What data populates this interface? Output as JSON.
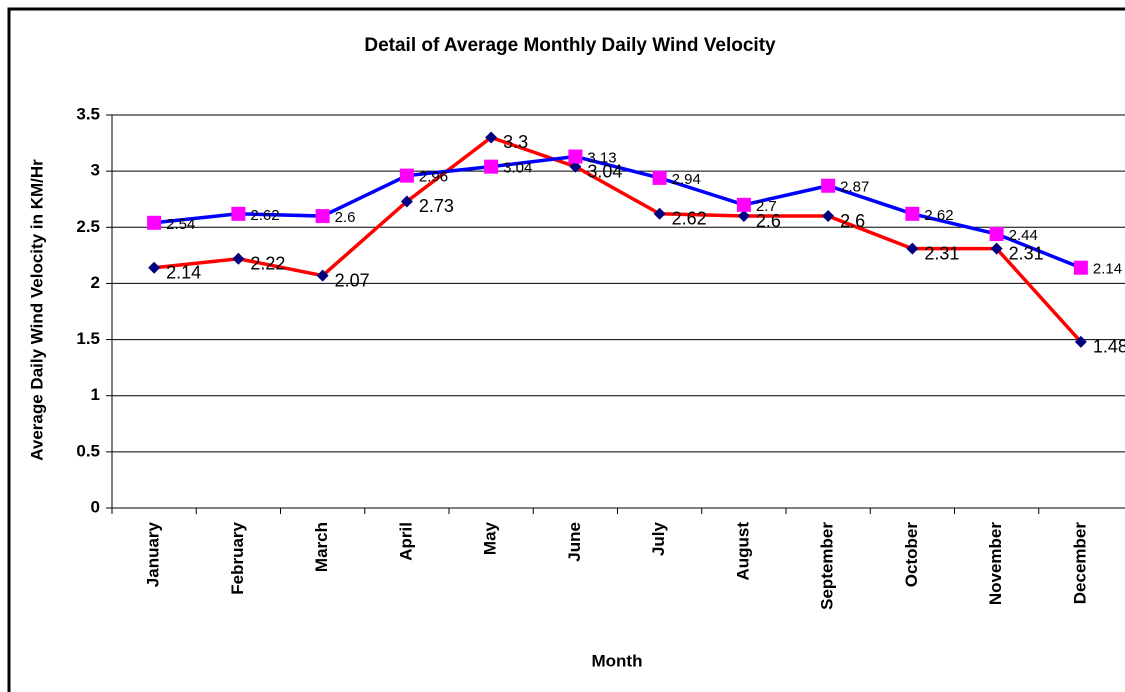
{
  "chart_data": {
    "type": "line",
    "title": "Detail of Average  Monthly Daily Wind Velocity",
    "x_label": "Month",
    "y_label": "Average Daily Wind Velocity in KM/Hr",
    "categories": [
      "January",
      "February",
      "March",
      "April",
      "May",
      "June",
      "July",
      "August",
      "September",
      "October",
      "November",
      "December"
    ],
    "series": [
      {
        "color": "#ff0000",
        "marker_color": "#000080",
        "marker": "diamond",
        "values": [
          2.14,
          2.22,
          2.07,
          2.73,
          3.3,
          3.04,
          2.62,
          2.6,
          2.6,
          2.31,
          2.31,
          1.48
        ]
      },
      {
        "color": "#0000ff",
        "marker_color": "#ff00ff",
        "marker": "square",
        "values": [
          2.54,
          2.62,
          2.6,
          2.96,
          3.04,
          3.13,
          2.94,
          2.7,
          2.87,
          2.62,
          2.44,
          2.14
        ]
      }
    ],
    "ylim": [
      0,
      3.5
    ],
    "yticks": [
      0,
      0.5,
      1,
      1.5,
      2,
      2.5,
      3,
      3.5
    ],
    "grid": true
  }
}
